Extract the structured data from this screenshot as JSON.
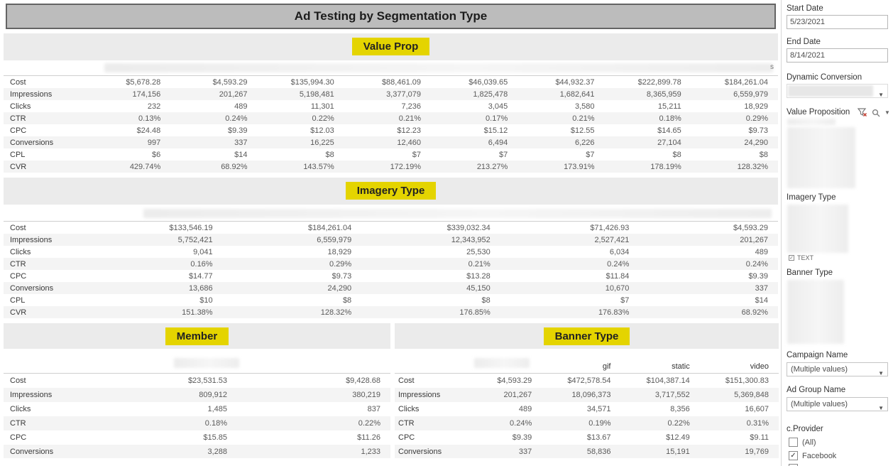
{
  "header": {
    "title": "Ad Testing by Segmentation Type"
  },
  "tables": [
    {
      "id": "value_prop",
      "title": "Value Prop",
      "partial_header_char": "s",
      "metrics": [
        {
          "label": "Cost",
          "values": [
            "$5,678.28",
            "$4,593.29",
            "$135,994.30",
            "$88,461.09",
            "$46,039.65",
            "$44,932.37",
            "$222,899.78",
            "$184,261.04"
          ]
        },
        {
          "label": "Impressions",
          "values": [
            "174,156",
            "201,267",
            "5,198,481",
            "3,377,079",
            "1,825,478",
            "1,682,641",
            "8,365,959",
            "6,559,979"
          ]
        },
        {
          "label": "Clicks",
          "values": [
            "232",
            "489",
            "11,301",
            "7,236",
            "3,045",
            "3,580",
            "15,211",
            "18,929"
          ]
        },
        {
          "label": "CTR",
          "values": [
            "0.13%",
            "0.24%",
            "0.22%",
            "0.21%",
            "0.17%",
            "0.21%",
            "0.18%",
            "0.29%"
          ]
        },
        {
          "label": "CPC",
          "values": [
            "$24.48",
            "$9.39",
            "$12.03",
            "$12.23",
            "$15.12",
            "$12.55",
            "$14.65",
            "$9.73"
          ]
        },
        {
          "label": "Conversions",
          "values": [
            "997",
            "337",
            "16,225",
            "12,460",
            "6,494",
            "6,226",
            "27,104",
            "24,290"
          ]
        },
        {
          "label": "CPL",
          "values": [
            "$6",
            "$14",
            "$8",
            "$7",
            "$7",
            "$7",
            "$8",
            "$8"
          ]
        },
        {
          "label": "CVR",
          "values": [
            "429.74%",
            "68.92%",
            "143.57%",
            "172.19%",
            "213.27%",
            "173.91%",
            "178.19%",
            "128.32%"
          ]
        }
      ]
    },
    {
      "id": "imagery_type",
      "title": "Imagery Type",
      "metrics": [
        {
          "label": "Cost",
          "values": [
            "$133,546.19",
            "$184,261.04",
            "$339,032.34",
            "$71,426.93",
            "$4,593.29"
          ]
        },
        {
          "label": "Impressions",
          "values": [
            "5,752,421",
            "6,559,979",
            "12,343,952",
            "2,527,421",
            "201,267"
          ]
        },
        {
          "label": "Clicks",
          "values": [
            "9,041",
            "18,929",
            "25,530",
            "6,034",
            "489"
          ]
        },
        {
          "label": "CTR",
          "values": [
            "0.16%",
            "0.29%",
            "0.21%",
            "0.24%",
            "0.24%"
          ]
        },
        {
          "label": "CPC",
          "values": [
            "$14.77",
            "$9.73",
            "$13.28",
            "$11.84",
            "$9.39"
          ]
        },
        {
          "label": "Conversions",
          "values": [
            "13,686",
            "24,290",
            "45,150",
            "10,670",
            "337"
          ]
        },
        {
          "label": "CPL",
          "values": [
            "$10",
            "$8",
            "$8",
            "$7",
            "$14"
          ]
        },
        {
          "label": "CVR",
          "values": [
            "151.38%",
            "128.32%",
            "176.85%",
            "176.83%",
            "68.92%"
          ]
        }
      ]
    },
    {
      "id": "member",
      "title": "Member",
      "metrics": [
        {
          "label": "Cost",
          "values": [
            "$23,531.53",
            "$9,428.68"
          ]
        },
        {
          "label": "Impressions",
          "values": [
            "809,912",
            "380,219"
          ]
        },
        {
          "label": "Clicks",
          "values": [
            "1,485",
            "837"
          ]
        },
        {
          "label": "CTR",
          "values": [
            "0.18%",
            "0.22%"
          ]
        },
        {
          "label": "CPC",
          "values": [
            "$15.85",
            "$11.26"
          ]
        },
        {
          "label": "Conversions",
          "values": [
            "3,288",
            "1,233"
          ]
        }
      ]
    },
    {
      "id": "banner_type",
      "title": "Banner Type",
      "column_headers": [
        "",
        "gif",
        "static",
        "video"
      ],
      "metrics": [
        {
          "label": "Cost",
          "values": [
            "$4,593.29",
            "$472,578.54",
            "$104,387.14",
            "$151,300.83"
          ]
        },
        {
          "label": "Impressions",
          "values": [
            "201,267",
            "18,096,373",
            "3,717,552",
            "5,369,848"
          ]
        },
        {
          "label": "Clicks",
          "values": [
            "489",
            "34,571",
            "8,356",
            "16,607"
          ]
        },
        {
          "label": "CTR",
          "values": [
            "0.24%",
            "0.19%",
            "0.22%",
            "0.31%"
          ]
        },
        {
          "label": "CPC",
          "values": [
            "$9.39",
            "$13.67",
            "$12.49",
            "$9.11"
          ]
        },
        {
          "label": "Conversions",
          "values": [
            "337",
            "58,836",
            "15,191",
            "19,769"
          ]
        }
      ]
    }
  ],
  "sidebar": {
    "start_date": {
      "label": "Start Date",
      "value": "5/23/2021"
    },
    "end_date": {
      "label": "End Date",
      "value": "8/14/2021"
    },
    "dynamic_conversion": {
      "label": "Dynamic Conversion"
    },
    "value_proposition": {
      "label": "Value Proposition"
    },
    "imagery_type": {
      "label": "Imagery Type",
      "partial_item": "TEXT"
    },
    "banner_type": {
      "label": "Banner Type"
    },
    "campaign_name": {
      "label": "Campaign Name",
      "value": "(Multiple values)"
    },
    "ad_group_name": {
      "label": "Ad Group Name",
      "value": "(Multiple values)"
    },
    "c_provider": {
      "label": "c.Provider",
      "options": [
        {
          "label": "(All)",
          "checked": false
        },
        {
          "label": "Facebook",
          "checked": true
        }
      ]
    }
  },
  "colors": {
    "accent_yellow": "#e4d400",
    "title_bar_gray": "#bcbcbc",
    "band_gray": "#ebebeb",
    "stripe_gray": "#f4f4f4"
  }
}
